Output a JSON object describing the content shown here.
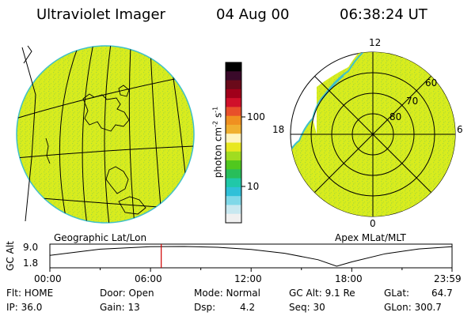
{
  "header": {
    "title": "Ultraviolet Imager",
    "date": "04 Aug 00",
    "time": "06:38:24 UT"
  },
  "left_panel": {
    "label": "Geographic Lat/Lon"
  },
  "right_panel": {
    "label": "Apex MLat/MLT",
    "mlt_labels": [
      "12",
      "18",
      "6",
      "0"
    ],
    "lat_labels": [
      "60",
      "70",
      "80"
    ]
  },
  "colorbar": {
    "unit_label": "photon cm",
    "unit_sup1": "-2",
    "unit_mid": "s",
    "unit_sup2": "-1",
    "tick_labels": [
      "100",
      "10"
    ],
    "colors": [
      "#000000",
      "#3a0a2a",
      "#6a0a1a",
      "#a0001a",
      "#d0102a",
      "#e8502a",
      "#f09020",
      "#f0b030",
      "#fff4c0",
      "#e8e820",
      "#a0dc20",
      "#50c81e",
      "#28be5a",
      "#20c8a8",
      "#30c0d8",
      "#80d8e8",
      "#c8e8f0",
      "#f0f0f0"
    ]
  },
  "timeline": {
    "axis_label": "GC Alt",
    "y_ticks": [
      "9.0",
      "1.8"
    ],
    "x_ticks": [
      "00:00",
      "06:00",
      "12:00",
      "18:00",
      "23:59"
    ],
    "current_time_hours": 6.64,
    "altitude_curve": {
      "hours": [
        0,
        3,
        6,
        8,
        10,
        12,
        14,
        16,
        17.1,
        18,
        20,
        22,
        23.98
      ],
      "re": [
        5.8,
        8.1,
        9.0,
        9.1,
        8.8,
        8.0,
        6.6,
        4.2,
        1.8,
        3.4,
        6.4,
        8.2,
        9.0
      ]
    }
  },
  "footer": {
    "flt": "Flt: HOME",
    "ip": "IP: 36.0",
    "door": "Door: Open",
    "gain": "Gain: 13",
    "mode": "Mode: Normal",
    "dsp_label": "Dsp:",
    "dsp_value": "4.2",
    "gcalt": "GC Alt: 9.1 Re",
    "seq": "Seq: 30",
    "glat_label": "GLat:",
    "glat_value": "64.7",
    "glon": "GLon: 300.7"
  },
  "colors": {
    "image_fill": "#d8ec1e",
    "speckle": "#a8d83a",
    "edge": "#40c0c8",
    "marker": "#d00000"
  }
}
